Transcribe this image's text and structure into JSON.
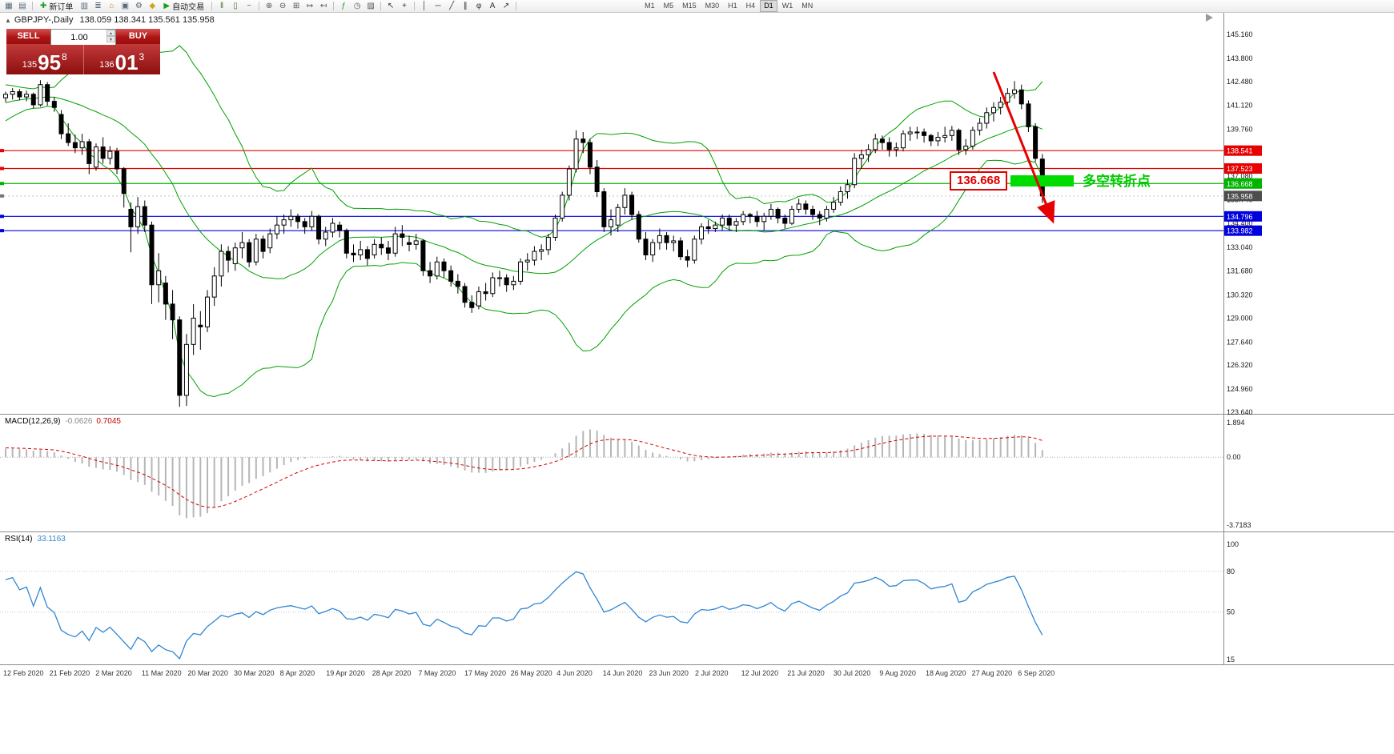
{
  "toolbar": {
    "items": [
      {
        "type": "icon",
        "name": "new-chart-icon",
        "glyph": "▦",
        "color": "#55687a"
      },
      {
        "type": "icon",
        "name": "profiles-icon",
        "glyph": "▤",
        "color": "#55687a"
      },
      {
        "type": "sep"
      },
      {
        "type": "button",
        "name": "new-order-button",
        "glyph": "✚",
        "color": "#1f9d2f",
        "label": "新订单"
      },
      {
        "type": "icon",
        "name": "market-watch-icon",
        "glyph": "▥",
        "color": "#55687a"
      },
      {
        "type": "icon",
        "name": "data-window-icon",
        "glyph": "≣",
        "color": "#55687a"
      },
      {
        "type": "icon",
        "name": "navigator-icon",
        "glyph": "⌂",
        "color": "#b58900"
      },
      {
        "type": "icon",
        "name": "terminal-icon",
        "glyph": "▣",
        "color": "#55687a"
      },
      {
        "type": "icon",
        "name": "strategy-tester-icon",
        "glyph": "⚙",
        "color": "#55687a"
      },
      {
        "type": "icon",
        "name": "metaeditor-icon",
        "glyph": "◆",
        "color": "#c9a41f"
      },
      {
        "type": "button",
        "name": "auto-trading-button",
        "glyph": "▶",
        "color": "#18a018",
        "label": "自动交易"
      },
      {
        "type": "sep"
      },
      {
        "type": "icon",
        "name": "bar-chart-icon",
        "glyph": "‖",
        "color": "#44722c"
      },
      {
        "type": "icon",
        "name": "candlestick-chart-icon",
        "glyph": "▯",
        "color": "#44722c"
      },
      {
        "type": "icon",
        "name": "line-chart-icon",
        "glyph": "~",
        "color": "#44722c"
      },
      {
        "type": "sep"
      },
      {
        "type": "icon",
        "name": "zoom-in-icon",
        "glyph": "⊕",
        "color": "#555555"
      },
      {
        "type": "icon",
        "name": "zoom-out-icon",
        "glyph": "⊖",
        "color": "#555555"
      },
      {
        "type": "icon",
        "name": "tile-windows-icon",
        "glyph": "⊞",
        "color": "#555555"
      },
      {
        "type": "icon",
        "name": "auto-scroll-icon",
        "glyph": "↦",
        "color": "#555555"
      },
      {
        "type": "icon",
        "name": "chart-shift-icon",
        "glyph": "↤",
        "color": "#555555"
      },
      {
        "type": "sep"
      },
      {
        "type": "icon",
        "name": "indicators-icon",
        "glyph": "ƒ",
        "color": "#1f9d2f"
      },
      {
        "type": "icon",
        "name": "periods-icon",
        "glyph": "◷",
        "color": "#555555"
      },
      {
        "type": "icon",
        "name": "templates-icon",
        "glyph": "▨",
        "color": "#555555"
      },
      {
        "type": "sep"
      },
      {
        "type": "icon",
        "name": "cursor-icon",
        "glyph": "↖",
        "color": "#333333"
      },
      {
        "type": "icon",
        "name": "crosshair-icon",
        "glyph": "+",
        "color": "#333333"
      },
      {
        "type": "sep"
      },
      {
        "type": "icon",
        "name": "vertical-line-icon",
        "glyph": "│",
        "color": "#333333"
      },
      {
        "type": "icon",
        "name": "horizontal-line-icon",
        "glyph": "─",
        "color": "#333333"
      },
      {
        "type": "icon",
        "name": "trendline-icon",
        "glyph": "╱",
        "color": "#333333"
      },
      {
        "type": "icon",
        "name": "channel-icon",
        "glyph": "∥",
        "color": "#333333"
      },
      {
        "type": "icon",
        "name": "fibonacci-icon",
        "glyph": "φ",
        "color": "#333333"
      },
      {
        "type": "icon",
        "name": "text-icon",
        "glyph": "A",
        "color": "#333333"
      },
      {
        "type": "icon",
        "name": "arrows-icon",
        "glyph": "↗",
        "color": "#333333"
      },
      {
        "type": "sep"
      },
      {
        "type": "gap"
      }
    ],
    "timeframes": [
      "M1",
      "M5",
      "M15",
      "M30",
      "H1",
      "H4",
      "D1",
      "W1",
      "MN"
    ],
    "active_timeframe": "D1"
  },
  "chart": {
    "title": "GBPJPY-,Daily",
    "ohlc_text": "138.059 138.341 135.561 135.958",
    "icons": {
      "collapse": "▲",
      "spin_up": "▲",
      "spin_down": "▼"
    },
    "one_click": {
      "sell_label": "SELL",
      "buy_label": "BUY",
      "volume": "1.00",
      "sell_small": "135",
      "sell_big": "95",
      "sell_sup": "8",
      "buy_small": "136",
      "buy_big": "01",
      "buy_sup": "3"
    },
    "annotations": {
      "level_label": "136.668",
      "level_color": "#e00000",
      "note_label": "多空转折点",
      "note_color": "#00cc00",
      "zone_color": "#00dc00",
      "arrow_color": "#e60000"
    }
  },
  "chart_data": {
    "type": "candlestick",
    "symbol": "GBPJPY-",
    "period": "Daily",
    "ohlc_current": {
      "open": 138.059,
      "high": 138.341,
      "low": 135.561,
      "close": 135.958
    },
    "y_ticks": [
      "145.160",
      "143.800",
      "142.480",
      "141.120",
      "139.760",
      "138.420",
      "137.080",
      "135.740",
      "134.400",
      "133.040",
      "131.680",
      "130.320",
      "129.000",
      "127.640",
      "126.320",
      "124.960",
      "123.640"
    ],
    "hlines": [
      {
        "price": 138.541,
        "label": "138.541",
        "color": "#e60000"
      },
      {
        "price": 137.523,
        "label": "137.523",
        "color": "#e60000"
      },
      {
        "price": 136.668,
        "label": "136.668",
        "color": "#00b400"
      },
      {
        "price": 134.796,
        "label": "134.796",
        "color": "#0000dd"
      },
      {
        "price": 133.982,
        "label": "133.982",
        "color": "#0000dd"
      }
    ],
    "current_price": 135.958,
    "current_price_label": "135.958",
    "current_badge_color": "#4d4d4d",
    "candle_colors": {
      "up": "#ffffff",
      "down": "#000000",
      "outline": "#000000"
    },
    "bollinger": {
      "period": 20,
      "deviation": 2,
      "color": "#00a000"
    },
    "offscreen_history_closes": [
      139.2,
      139.4,
      139.6,
      139.9,
      140.1,
      140.0,
      139.8,
      140.0,
      140.3,
      140.5,
      140.8,
      141.0,
      140.9,
      141.2,
      141.4,
      141.3,
      141.5,
      141.7,
      141.6,
      141.8,
      141.9,
      141.7,
      141.5,
      141.4,
      141.5,
      141.6
    ],
    "candles": [
      [
        141.55,
        141.9,
        141.3,
        141.75
      ],
      [
        141.75,
        142.1,
        141.45,
        141.9
      ],
      [
        141.9,
        142.05,
        141.4,
        141.6
      ],
      [
        141.6,
        141.95,
        141.35,
        141.75
      ],
      [
        141.75,
        141.85,
        140.95,
        141.15
      ],
      [
        141.15,
        142.55,
        141.05,
        142.3
      ],
      [
        142.3,
        142.45,
        141.1,
        141.35
      ],
      [
        141.35,
        141.6,
        140.75,
        141.0
      ],
      [
        140.6,
        140.85,
        139.2,
        139.5
      ],
      [
        139.5,
        140.1,
        138.8,
        139.0
      ],
      [
        139.0,
        139.45,
        138.4,
        138.7
      ],
      [
        138.7,
        139.5,
        138.3,
        139.05
      ],
      [
        139.05,
        139.2,
        137.2,
        137.8
      ],
      [
        137.6,
        138.95,
        137.4,
        138.75
      ],
      [
        138.75,
        139.3,
        137.8,
        138.1
      ],
      [
        138.1,
        138.8,
        137.75,
        138.5
      ],
      [
        138.5,
        138.7,
        137.2,
        137.5
      ],
      [
        137.5,
        137.6,
        135.3,
        136.1
      ],
      [
        135.2,
        135.6,
        132.75,
        134.2
      ],
      [
        134.2,
        135.9,
        133.8,
        135.35
      ],
      [
        135.35,
        135.7,
        133.9,
        134.3
      ],
      [
        134.3,
        134.5,
        129.8,
        130.9
      ],
      [
        130.9,
        132.7,
        129.9,
        131.7
      ],
      [
        131.0,
        131.4,
        128.9,
        129.8
      ],
      [
        129.8,
        130.6,
        127.8,
        128.9
      ],
      [
        128.9,
        129.1,
        123.95,
        124.6
      ],
      [
        124.6,
        128.1,
        124.0,
        127.5
      ],
      [
        127.5,
        129.8,
        126.9,
        129.0
      ],
      [
        128.6,
        129.4,
        127.2,
        128.5
      ],
      [
        128.5,
        130.6,
        128.2,
        130.2
      ],
      [
        130.2,
        131.9,
        129.7,
        131.4
      ],
      [
        131.4,
        133.2,
        130.8,
        132.8
      ],
      [
        132.8,
        133.1,
        131.6,
        132.3
      ],
      [
        132.1,
        133.3,
        131.7,
        133.0
      ],
      [
        133.0,
        133.9,
        132.4,
        133.3
      ],
      [
        133.3,
        133.5,
        131.9,
        132.2
      ],
      [
        132.2,
        133.8,
        132.0,
        133.5
      ],
      [
        133.5,
        133.7,
        132.4,
        132.8
      ],
      [
        133.0,
        134.1,
        132.7,
        133.8
      ],
      [
        133.8,
        134.8,
        133.5,
        134.3
      ],
      [
        134.3,
        134.9,
        133.8,
        134.6
      ],
      [
        134.6,
        135.2,
        134.2,
        134.8
      ],
      [
        134.8,
        134.95,
        134.1,
        134.5
      ],
      [
        134.5,
        134.7,
        133.8,
        134.2
      ],
      [
        134.2,
        135.1,
        134.0,
        134.8
      ],
      [
        134.8,
        134.9,
        133.2,
        133.5
      ],
      [
        133.5,
        134.2,
        133.1,
        133.9
      ],
      [
        133.9,
        134.7,
        133.6,
        134.4
      ],
      [
        134.3,
        134.5,
        133.6,
        134.0
      ],
      [
        134.0,
        134.1,
        132.4,
        132.7
      ],
      [
        132.7,
        133.2,
        132.2,
        132.6
      ],
      [
        132.6,
        133.4,
        132.3,
        132.9
      ],
      [
        132.9,
        133.1,
        132.0,
        132.4
      ],
      [
        132.6,
        133.5,
        132.4,
        133.2
      ],
      [
        133.2,
        133.6,
        132.6,
        133.0
      ],
      [
        133.0,
        133.4,
        132.3,
        132.7
      ],
      [
        132.7,
        134.2,
        132.5,
        133.8
      ],
      [
        133.8,
        134.3,
        133.1,
        133.6
      ],
      [
        133.3,
        133.7,
        132.8,
        133.2
      ],
      [
        133.2,
        133.8,
        132.9,
        133.4
      ],
      [
        133.4,
        133.5,
        131.4,
        131.7
      ],
      [
        131.7,
        132.2,
        131.0,
        131.4
      ],
      [
        131.4,
        132.5,
        131.2,
        132.2
      ],
      [
        132.2,
        132.4,
        131.3,
        131.7
      ],
      [
        131.7,
        132.0,
        130.8,
        131.1
      ],
      [
        131.1,
        131.5,
        130.4,
        130.8
      ],
      [
        130.8,
        131.0,
        129.6,
        129.9
      ],
      [
        129.9,
        130.3,
        129.3,
        129.6
      ],
      [
        129.7,
        130.8,
        129.5,
        130.5
      ],
      [
        130.5,
        131.0,
        130.0,
        130.4
      ],
      [
        130.4,
        131.6,
        130.2,
        131.3
      ],
      [
        131.3,
        131.7,
        130.8,
        131.3
      ],
      [
        131.3,
        131.5,
        130.5,
        130.9
      ],
      [
        130.9,
        131.4,
        130.6,
        131.1
      ],
      [
        131.1,
        132.4,
        130.9,
        132.2
      ],
      [
        132.2,
        132.7,
        131.7,
        132.3
      ],
      [
        132.3,
        133.1,
        132.0,
        132.8
      ],
      [
        132.8,
        133.2,
        132.3,
        132.9
      ],
      [
        132.9,
        133.8,
        132.6,
        133.6
      ],
      [
        133.6,
        134.9,
        133.4,
        134.7
      ],
      [
        134.7,
        136.2,
        134.5,
        136.0
      ],
      [
        136.0,
        137.7,
        135.7,
        137.5
      ],
      [
        137.5,
        139.7,
        137.3,
        139.2
      ],
      [
        139.2,
        139.6,
        138.4,
        139.0
      ],
      [
        139.0,
        139.2,
        137.2,
        137.6
      ],
      [
        137.6,
        138.0,
        135.9,
        136.2
      ],
      [
        136.2,
        136.4,
        133.9,
        134.2
      ],
      [
        134.2,
        135.2,
        133.7,
        134.6
      ],
      [
        134.3,
        135.5,
        133.9,
        135.3
      ],
      [
        135.3,
        136.4,
        134.9,
        136.0
      ],
      [
        136.0,
        136.2,
        134.6,
        134.9
      ],
      [
        134.9,
        135.1,
        133.3,
        133.5
      ],
      [
        133.5,
        133.9,
        132.3,
        132.6
      ],
      [
        132.6,
        133.5,
        132.2,
        133.3
      ],
      [
        133.3,
        134.1,
        132.9,
        133.7
      ],
      [
        133.7,
        133.9,
        132.9,
        133.3
      ],
      [
        133.3,
        133.7,
        132.8,
        133.4
      ],
      [
        133.4,
        133.6,
        132.3,
        132.5
      ],
      [
        132.5,
        132.9,
        131.9,
        132.3
      ],
      [
        132.3,
        133.7,
        132.1,
        133.5
      ],
      [
        133.5,
        134.4,
        133.2,
        134.2
      ],
      [
        134.2,
        134.6,
        133.8,
        134.1
      ],
      [
        134.1,
        134.5,
        133.9,
        134.3
      ],
      [
        134.3,
        134.9,
        134.0,
        134.7
      ],
      [
        134.7,
        134.9,
        134.0,
        134.3
      ],
      [
        134.3,
        134.7,
        133.9,
        134.5
      ],
      [
        134.5,
        135.1,
        134.3,
        134.9
      ],
      [
        134.9,
        135.0,
        134.4,
        134.8
      ],
      [
        134.8,
        135.1,
        134.2,
        134.5
      ],
      [
        134.5,
        135.0,
        134.0,
        134.8
      ],
      [
        134.8,
        135.5,
        134.6,
        135.2
      ],
      [
        135.2,
        135.3,
        134.4,
        134.7
      ],
      [
        134.7,
        134.9,
        134.1,
        134.4
      ],
      [
        134.4,
        135.4,
        134.3,
        135.2
      ],
      [
        135.2,
        135.8,
        135.0,
        135.5
      ],
      [
        135.5,
        135.7,
        134.9,
        135.2
      ],
      [
        135.2,
        135.4,
        134.6,
        134.9
      ],
      [
        134.9,
        135.1,
        134.3,
        134.7
      ],
      [
        134.7,
        135.4,
        134.5,
        135.2
      ],
      [
        135.2,
        135.9,
        135.0,
        135.6
      ],
      [
        135.6,
        136.5,
        135.4,
        136.2
      ],
      [
        136.2,
        136.9,
        135.8,
        136.6
      ],
      [
        136.6,
        138.4,
        136.4,
        138.1
      ],
      [
        138.1,
        138.6,
        137.5,
        138.3
      ],
      [
        138.3,
        138.9,
        137.9,
        138.6
      ],
      [
        138.6,
        139.5,
        138.4,
        139.2
      ],
      [
        139.2,
        139.4,
        138.6,
        139.0
      ],
      [
        139.0,
        139.3,
        138.2,
        138.6
      ],
      [
        138.6,
        139.0,
        138.2,
        138.7
      ],
      [
        138.7,
        139.7,
        138.5,
        139.5
      ],
      [
        139.5,
        139.9,
        139.1,
        139.6
      ],
      [
        139.6,
        139.9,
        139.2,
        139.6
      ],
      [
        139.6,
        139.8,
        139.0,
        139.4
      ],
      [
        139.4,
        139.5,
        138.8,
        139.1
      ],
      [
        139.1,
        139.6,
        138.8,
        139.3
      ],
      [
        139.3,
        139.9,
        139.0,
        139.4
      ],
      [
        139.4,
        139.95,
        139.1,
        139.7
      ],
      [
        139.7,
        139.8,
        138.3,
        138.6
      ],
      [
        138.6,
        139.2,
        138.3,
        138.8
      ],
      [
        138.8,
        139.9,
        138.6,
        139.7
      ],
      [
        139.7,
        140.4,
        139.4,
        140.1
      ],
      [
        140.1,
        141.0,
        139.8,
        140.7
      ],
      [
        140.7,
        141.3,
        140.2,
        141.0
      ],
      [
        141.0,
        141.6,
        140.6,
        141.3
      ],
      [
        141.3,
        142.1,
        141.0,
        141.8
      ],
      [
        141.8,
        142.5,
        141.5,
        142.0
      ],
      [
        142.0,
        142.3,
        140.9,
        141.2
      ],
      [
        141.2,
        141.4,
        139.6,
        139.9
      ],
      [
        139.9,
        140.1,
        137.9,
        138.1
      ],
      [
        138.059,
        138.341,
        135.561,
        135.958
      ]
    ],
    "date_labels": [
      "12 Feb 2020",
      "21 Feb 2020",
      "2 Mar 2020",
      "11 Mar 2020",
      "20 Mar 2020",
      "30 Mar 2020",
      "8 Apr 2020",
      "19 Apr 2020",
      "28 Apr 2020",
      "7 May 2020",
      "17 May 2020",
      "26 May 2020",
      "4 Jun 2020",
      "14 Jun 2020",
      "23 Jun 2020",
      "2 Jul 2020",
      "12 Jul 2020",
      "21 Jul 2020",
      "30 Jul 2020",
      "9 Aug 2020",
      "18 Aug 2020",
      "27 Aug 2020",
      "6 Sep 2020"
    ],
    "macd": {
      "name": "MACD(12,26,9)",
      "value_main": "-0.0626",
      "value_signal": "0.7045",
      "axis": [
        "1.894",
        "0.00",
        "-3.7183"
      ],
      "histogram_color": "#b6b6b6",
      "signal_color": "#d40000"
    },
    "rsi": {
      "name": "RSI(14)",
      "value_text": "33.1163",
      "axis": [
        "100",
        "80",
        "50",
        "15"
      ],
      "levels": [
        80,
        50
      ],
      "color": "#2f86d2"
    }
  }
}
